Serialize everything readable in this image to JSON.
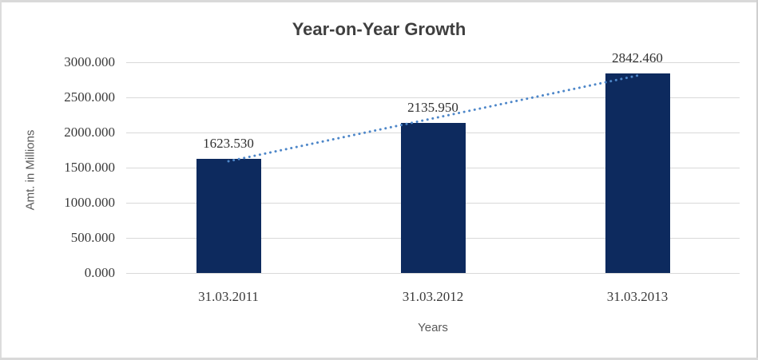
{
  "chart_data": {
    "type": "bar",
    "title": "Year-on-Year Growth",
    "xlabel": "Years",
    "ylabel": "Amt. in Millions",
    "categories": [
      "31.03.2011",
      "31.03.2012",
      "31.03.2013"
    ],
    "values": [
      1623.53,
      2135.95,
      2842.46
    ],
    "data_labels": [
      "1623.530",
      "2135.950",
      "2842.460"
    ],
    "ytick_labels": [
      "3000.000",
      "2500.000",
      "2000.000",
      "1500.000",
      "1000.000",
      "500.000",
      "0.000"
    ],
    "ytick_values": [
      3000,
      2500,
      2000,
      1500,
      1000,
      500,
      0
    ],
    "ylim": [
      0,
      3000
    ],
    "grid": "horizontal",
    "legend": "none",
    "trendline": {
      "type": "linear",
      "style": "dotted"
    },
    "colors": {
      "bar": "#0d2a5e",
      "trendline": "#4e87c9",
      "gridline": "#d9d9d9",
      "title_text": "#3f3f3f",
      "tick_text": "#3a3a3a",
      "axis_title_text": "#595959"
    }
  }
}
